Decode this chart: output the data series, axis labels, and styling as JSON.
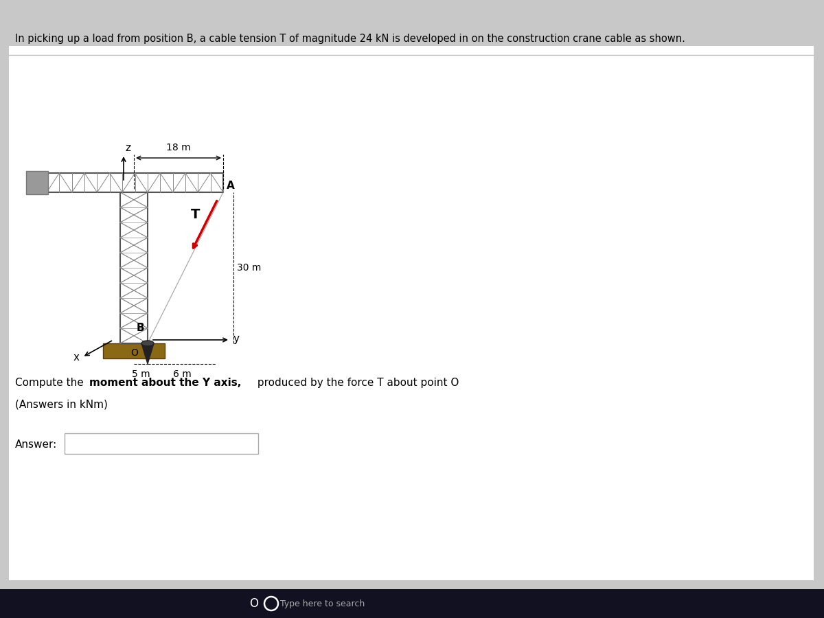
{
  "title_text": "In picking up a load from position B, a cable tension T of magnitude 24 kN is developed in on the construction crane cable as shown.",
  "bg_color": "#c8c8c8",
  "panel_bg_top": "#e0e0e0",
  "panel_color": "#f0f0f0",
  "question_text2": "(Answers in kNm)",
  "answer_label": "Answer:",
  "taskbar_color": "#111122",
  "search_text": "Type here to search",
  "dim_18m": "18 m",
  "dim_30m": "30 m",
  "dim_5m": "5 m",
  "dim_6m": "6 m",
  "label_A": "A",
  "label_B": "B",
  "label_T": "T",
  "label_x": "x",
  "label_y": "y",
  "label_z": "z",
  "label_O": "O",
  "crane_color": "#888888",
  "crane_dark": "#555555",
  "ground_color": "#8B6914",
  "load_color": "#222222",
  "red_arrow": "#cc0000",
  "cable_color": "#aaaaaa"
}
